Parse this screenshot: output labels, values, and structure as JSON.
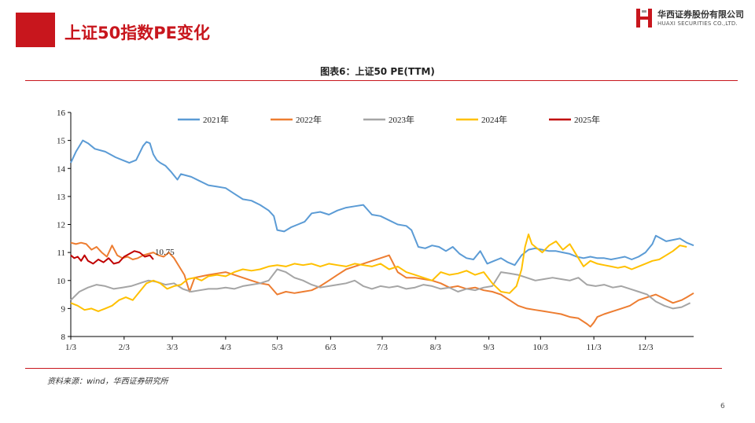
{
  "header": {
    "title": "上证50指数PE变化"
  },
  "logo": {
    "cn": "华西证券股份有限公司",
    "en": "HUAXI SECURITIES CO.,LTD.",
    "mark_color": "#c8161d"
  },
  "footer": {
    "source": "资料来源：wind，华西证券研究所",
    "page_number": "6"
  },
  "accent_color": "#c8161d",
  "chart_data": {
    "type": "line",
    "title": "图表6：上证50 PE(TTM)",
    "xlabel": "",
    "ylabel": "",
    "ylim": [
      8,
      16
    ],
    "yticks": [
      8,
      9,
      10,
      11,
      12,
      13,
      14,
      15,
      16
    ],
    "xlim": [
      0,
      362
    ],
    "x_unit": "day of year",
    "x_ticks": [
      {
        "label": "1/3",
        "x": 0
      },
      {
        "label": "2/3",
        "x": 31
      },
      {
        "label": "3/3",
        "x": 59
      },
      {
        "label": "4/3",
        "x": 90
      },
      {
        "label": "5/3",
        "x": 120
      },
      {
        "label": "6/3",
        "x": 151
      },
      {
        "label": "7/3",
        "x": 181
      },
      {
        "label": "8/3",
        "x": 212
      },
      {
        "label": "9/3",
        "x": 243
      },
      {
        "label": "10/3",
        "x": 273
      },
      {
        "label": "11/3",
        "x": 304
      },
      {
        "label": "12/3",
        "x": 334
      }
    ],
    "grid": false,
    "legend_position": "top",
    "annotations": [
      {
        "text": "10.75",
        "series": "2025年",
        "x": 48,
        "y": 10.75
      }
    ],
    "series": [
      {
        "name": "2021年",
        "color": "#5b9bd5",
        "x": [
          0,
          3,
          7,
          10,
          14,
          20,
          26,
          30,
          34,
          38,
          42,
          44,
          46,
          48,
          50,
          52,
          55,
          58,
          62,
          64,
          70,
          75,
          80,
          85,
          90,
          95,
          100,
          105,
          110,
          115,
          118,
          120,
          124,
          128,
          132,
          136,
          140,
          145,
          150,
          155,
          160,
          165,
          170,
          175,
          180,
          185,
          190,
          195,
          198,
          202,
          206,
          210,
          214,
          218,
          222,
          226,
          230,
          234,
          238,
          242,
          246,
          250,
          254,
          258,
          262,
          266,
          270,
          274,
          278,
          282,
          286,
          290,
          294,
          298,
          302,
          306,
          310,
          314,
          318,
          322,
          326,
          330,
          334,
          338,
          340,
          343,
          346,
          350,
          354,
          358,
          362
        ],
        "y": [
          14.2,
          14.6,
          15.0,
          14.9,
          14.7,
          14.6,
          14.4,
          14.3,
          14.2,
          14.3,
          14.8,
          14.95,
          14.9,
          14.5,
          14.3,
          14.2,
          14.1,
          13.9,
          13.6,
          13.8,
          13.7,
          13.55,
          13.4,
          13.35,
          13.3,
          13.1,
          12.9,
          12.85,
          12.7,
          12.5,
          12.3,
          11.8,
          11.75,
          11.9,
          12.0,
          12.1,
          12.4,
          12.45,
          12.35,
          12.5,
          12.6,
          12.65,
          12.7,
          12.35,
          12.3,
          12.15,
          12.0,
          11.95,
          11.8,
          11.2,
          11.15,
          11.25,
          11.2,
          11.05,
          11.2,
          10.95,
          10.8,
          10.75,
          11.05,
          10.6,
          10.7,
          10.8,
          10.65,
          10.55,
          10.9,
          11.1,
          11.15,
          11.1,
          11.05,
          11.05,
          11.0,
          10.95,
          10.85,
          10.8,
          10.85,
          10.8,
          10.8,
          10.75,
          10.8,
          10.85,
          10.75,
          10.85,
          11.0,
          11.3,
          11.6,
          11.5,
          11.4,
          11.45,
          11.5,
          11.35,
          11.25
        ]
      },
      {
        "name": "2022年",
        "color": "#ed7d31",
        "x": [
          0,
          3,
          6,
          9,
          12,
          15,
          18,
          21,
          24,
          27,
          30,
          33,
          36,
          39,
          42,
          45,
          48,
          51,
          54,
          57,
          60,
          63,
          66,
          69,
          72,
          76,
          80,
          85,
          90,
          95,
          100,
          105,
          110,
          115,
          120,
          125,
          130,
          135,
          140,
          145,
          150,
          155,
          160,
          165,
          170,
          175,
          180,
          185,
          190,
          195,
          200,
          205,
          210,
          215,
          220,
          225,
          230,
          235,
          240,
          245,
          250,
          255,
          260,
          265,
          270,
          275,
          280,
          285,
          290,
          295,
          300,
          302,
          304,
          306,
          310,
          315,
          320,
          325,
          330,
          335,
          340,
          345,
          350,
          355,
          358,
          362
        ],
        "y": [
          11.35,
          11.3,
          11.35,
          11.3,
          11.1,
          11.2,
          11.0,
          10.85,
          11.25,
          10.9,
          10.8,
          10.85,
          10.75,
          10.8,
          10.9,
          10.95,
          11.0,
          10.9,
          10.85,
          11.0,
          10.8,
          10.5,
          10.2,
          9.6,
          10.1,
          10.15,
          10.2,
          10.25,
          10.3,
          10.2,
          10.1,
          10.0,
          9.9,
          9.85,
          9.5,
          9.6,
          9.55,
          9.6,
          9.65,
          9.8,
          10.0,
          10.2,
          10.4,
          10.5,
          10.6,
          10.7,
          10.8,
          10.9,
          10.3,
          10.1,
          10.1,
          10.05,
          10.0,
          9.9,
          9.75,
          9.8,
          9.7,
          9.75,
          9.65,
          9.6,
          9.5,
          9.3,
          9.1,
          9.0,
          8.95,
          8.9,
          8.85,
          8.8,
          8.7,
          8.65,
          8.45,
          8.35,
          8.5,
          8.7,
          8.8,
          8.9,
          9.0,
          9.1,
          9.3,
          9.4,
          9.5,
          9.35,
          9.2,
          9.3,
          9.4,
          9.55
        ]
      },
      {
        "name": "2023年",
        "color": "#a5a5a5",
        "x": [
          0,
          5,
          10,
          15,
          20,
          25,
          30,
          35,
          40,
          45,
          50,
          55,
          60,
          65,
          70,
          75,
          80,
          85,
          90,
          95,
          100,
          105,
          110,
          115,
          120,
          125,
          130,
          135,
          140,
          145,
          150,
          155,
          160,
          165,
          170,
          175,
          180,
          185,
          190,
          195,
          200,
          205,
          210,
          215,
          220,
          225,
          230,
          235,
          240,
          245,
          250,
          255,
          260,
          265,
          270,
          275,
          280,
          285,
          290,
          295,
          300,
          305,
          310,
          315,
          320,
          325,
          330,
          335,
          340,
          345,
          350,
          355,
          360
        ],
        "y": [
          9.3,
          9.6,
          9.75,
          9.85,
          9.8,
          9.7,
          9.75,
          9.8,
          9.9,
          10.0,
          9.95,
          9.85,
          9.9,
          9.7,
          9.6,
          9.65,
          9.7,
          9.7,
          9.75,
          9.7,
          9.8,
          9.85,
          9.9,
          10.0,
          10.4,
          10.3,
          10.1,
          10.0,
          9.85,
          9.75,
          9.8,
          9.85,
          9.9,
          10.0,
          9.8,
          9.7,
          9.8,
          9.75,
          9.8,
          9.7,
          9.75,
          9.85,
          9.8,
          9.7,
          9.75,
          9.6,
          9.7,
          9.65,
          9.75,
          9.8,
          10.3,
          10.25,
          10.2,
          10.1,
          10.0,
          10.05,
          10.1,
          10.05,
          10.0,
          10.1,
          9.85,
          9.8,
          9.85,
          9.75,
          9.8,
          9.7,
          9.6,
          9.5,
          9.25,
          9.1,
          9.0,
          9.05,
          9.2
        ]
      },
      {
        "name": "2024年",
        "color": "#ffc000",
        "x": [
          0,
          4,
          8,
          12,
          16,
          20,
          24,
          28,
          32,
          36,
          40,
          44,
          48,
          52,
          56,
          60,
          64,
          68,
          72,
          76,
          80,
          85,
          90,
          95,
          100,
          105,
          110,
          115,
          120,
          125,
          130,
          135,
          140,
          145,
          150,
          155,
          160,
          165,
          170,
          175,
          180,
          185,
          190,
          195,
          200,
          205,
          210,
          215,
          220,
          225,
          230,
          235,
          240,
          245,
          250,
          255,
          259,
          262,
          264,
          266,
          268,
          270,
          274,
          278,
          282,
          286,
          290,
          294,
          298,
          302,
          306,
          310,
          314,
          318,
          322,
          326,
          330,
          334,
          338,
          342,
          346,
          350,
          354,
          358
        ],
        "y": [
          9.2,
          9.1,
          8.95,
          9.0,
          8.9,
          9.0,
          9.1,
          9.3,
          9.4,
          9.3,
          9.6,
          9.9,
          10.0,
          9.9,
          9.7,
          9.8,
          9.85,
          10.05,
          10.1,
          10.0,
          10.15,
          10.2,
          10.15,
          10.3,
          10.4,
          10.35,
          10.4,
          10.5,
          10.55,
          10.5,
          10.6,
          10.55,
          10.6,
          10.5,
          10.6,
          10.55,
          10.5,
          10.6,
          10.55,
          10.5,
          10.6,
          10.4,
          10.5,
          10.3,
          10.2,
          10.1,
          10.0,
          10.3,
          10.2,
          10.25,
          10.35,
          10.2,
          10.3,
          9.9,
          9.6,
          9.55,
          9.8,
          10.4,
          11.2,
          11.65,
          11.3,
          11.2,
          11.0,
          11.25,
          11.4,
          11.1,
          11.3,
          10.9,
          10.5,
          10.7,
          10.6,
          10.55,
          10.5,
          10.45,
          10.5,
          10.4,
          10.5,
          10.6,
          10.7,
          10.75,
          10.9,
          11.05,
          11.25,
          11.2
        ]
      },
      {
        "name": "2025年",
        "color": "#c00000",
        "x": [
          0,
          2,
          4,
          6,
          8,
          10,
          13,
          16,
          19,
          22,
          25,
          28,
          31,
          34,
          37,
          40,
          43,
          46,
          48
        ],
        "y": [
          10.9,
          10.8,
          10.85,
          10.7,
          10.9,
          10.7,
          10.6,
          10.75,
          10.65,
          10.8,
          10.6,
          10.65,
          10.85,
          10.95,
          11.05,
          11.0,
          10.85,
          10.9,
          10.75
        ]
      }
    ]
  }
}
